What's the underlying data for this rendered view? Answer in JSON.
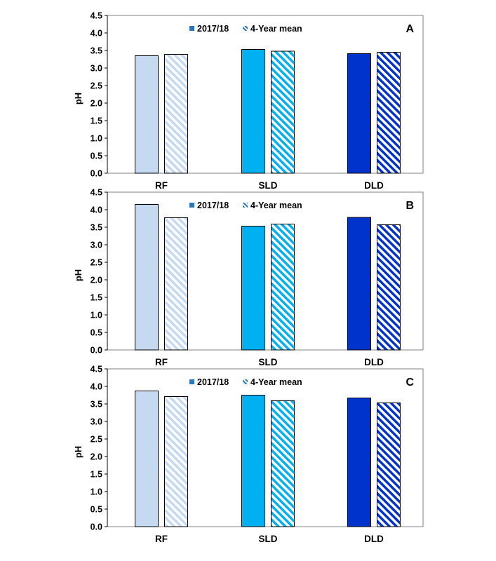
{
  "chart_data": [
    {
      "type": "bar",
      "panel_label": "A",
      "categories": [
        "RF",
        "SLD",
        "DLD"
      ],
      "series": [
        {
          "name": "2017/18",
          "values": [
            3.35,
            3.53,
            3.41
          ],
          "pattern": "solid"
        },
        {
          "name": "4-Year mean",
          "values": [
            3.39,
            3.48,
            3.45
          ],
          "pattern": "hatched"
        }
      ],
      "category_colors": [
        "#c5d9f1",
        "#00b0f0",
        "#0033cc"
      ],
      "ylabel": "pH",
      "ylim": [
        0,
        4.5
      ],
      "yticks": [
        "0.0",
        "0.5",
        "1.0",
        "1.5",
        "2.0",
        "2.5",
        "3.0",
        "3.5",
        "4.0",
        "4.5"
      ],
      "legend_placement": "top-center",
      "grid": false
    },
    {
      "type": "bar",
      "panel_label": "B",
      "categories": [
        "RF",
        "SLD",
        "DLD"
      ],
      "series": [
        {
          "name": "2017/18",
          "values": [
            4.15,
            3.53,
            3.78
          ],
          "pattern": "solid"
        },
        {
          "name": "4-Year mean",
          "values": [
            3.77,
            3.59,
            3.57
          ],
          "pattern": "hatched"
        }
      ],
      "category_colors": [
        "#c5d9f1",
        "#00b0f0",
        "#0033cc"
      ],
      "ylabel": "pH",
      "ylim": [
        0,
        4.5
      ],
      "yticks": [
        "0.0",
        "0.5",
        "1.0",
        "1.5",
        "2.0",
        "2.5",
        "3.0",
        "3.5",
        "4.0",
        "4.5"
      ],
      "legend_placement": "top-center",
      "grid": false
    },
    {
      "type": "bar",
      "panel_label": "C",
      "categories": [
        "RF",
        "SLD",
        "DLD"
      ],
      "series": [
        {
          "name": "2017/18",
          "values": [
            3.87,
            3.75,
            3.67
          ],
          "pattern": "solid"
        },
        {
          "name": "4-Year mean",
          "values": [
            3.71,
            3.59,
            3.53
          ],
          "pattern": "hatched"
        }
      ],
      "category_colors": [
        "#c5d9f1",
        "#00b0f0",
        "#0033cc"
      ],
      "ylabel": "pH",
      "ylim": [
        0,
        4.5
      ],
      "yticks": [
        "0.0",
        "0.5",
        "1.0",
        "1.5",
        "2.0",
        "2.5",
        "3.0",
        "3.5",
        "4.0",
        "4.5"
      ],
      "legend_placement": "top-center",
      "grid": false
    }
  ],
  "colors": {
    "legend_solid_marker": "#2e75b6",
    "legend_hatch_marker": "#2e75b6",
    "axis": "#000000",
    "plot_border": "#808080"
  }
}
